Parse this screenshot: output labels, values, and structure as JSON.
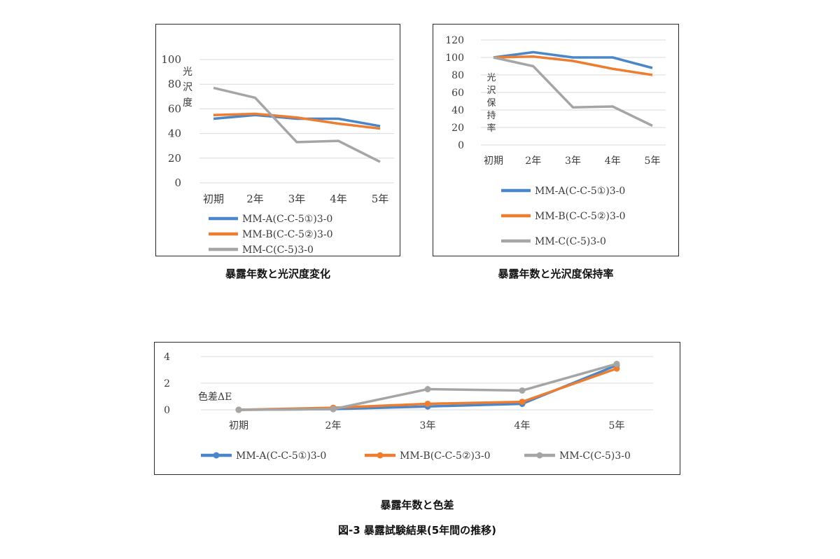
{
  "figure_caption": "図-3 暴露試験結果(5年間の推移)",
  "chart_data": [
    {
      "type": "line",
      "title": "暴露年数と光沢度変化",
      "ylabel": "光沢度",
      "categories": [
        "初期",
        "2年",
        "3年",
        "4年",
        "5年"
      ],
      "yticks": [
        "0",
        "20",
        "40",
        "60",
        "80",
        "100"
      ],
      "ylim": [
        0,
        100
      ],
      "grid": "horizontal",
      "legend": "bottom",
      "series": [
        {
          "name": "MM-A(C-C-5①)3-0",
          "color": "#4a86c8",
          "values": [
            52,
            55,
            52,
            52,
            46
          ]
        },
        {
          "name": "MM-B(C-C-5②)3-0",
          "color": "#ed7d31",
          "values": [
            55,
            56,
            53,
            48,
            44
          ]
        },
        {
          "name": "MM-C(C-5)3-0",
          "color": "#a5a5a5",
          "values": [
            77,
            69,
            33,
            34,
            17
          ]
        }
      ]
    },
    {
      "type": "line",
      "title": "暴露年数と光沢度保持率",
      "ylabel": "光沢保持率",
      "categories": [
        "初期",
        "2年",
        "3年",
        "4年",
        "5年"
      ],
      "yticks": [
        "0",
        "20",
        "40",
        "60",
        "80",
        "100",
        "120"
      ],
      "ylim": [
        0,
        120
      ],
      "grid": "horizontal",
      "legend": "bottom",
      "series": [
        {
          "name": "MM-A(C-C-5①)3-0",
          "color": "#4a86c8",
          "values": [
            100,
            106,
            100,
            100,
            88
          ]
        },
        {
          "name": "MM-B(C-C-5②)3-0",
          "color": "#ed7d31",
          "values": [
            100,
            101,
            96,
            87,
            80
          ]
        },
        {
          "name": "MM-C(C-5)3-0",
          "color": "#a5a5a5",
          "values": [
            100,
            90,
            43,
            44,
            22
          ]
        }
      ]
    },
    {
      "type": "line",
      "title": "暴露年数と色差",
      "ylabel": "色差ΔE",
      "categories": [
        "初期",
        "2年",
        "3年",
        "4年",
        "5年"
      ],
      "yticks": [
        "0",
        "2",
        "4"
      ],
      "ylim": [
        0,
        4
      ],
      "grid": "horizontal",
      "legend": "bottom",
      "markers": true,
      "series": [
        {
          "name": "MM-A(C-C-5①)3-0",
          "color": "#4a86c8",
          "values": [
            0,
            0.05,
            0.25,
            0.45,
            3.35
          ]
        },
        {
          "name": "MM-B(C-C-5②)3-0",
          "color": "#ed7d31",
          "values": [
            0,
            0.15,
            0.45,
            0.6,
            3.1
          ]
        },
        {
          "name": "MM-C(C-5)3-0",
          "color": "#a5a5a5",
          "values": [
            0,
            0.05,
            1.55,
            1.45,
            3.45
          ]
        }
      ]
    }
  ]
}
